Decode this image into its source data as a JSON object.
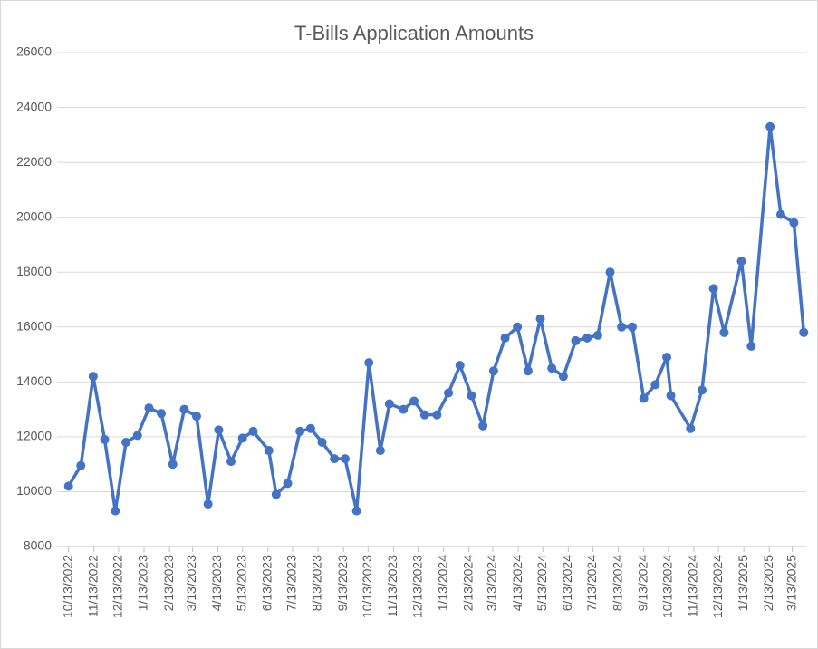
{
  "chart_data": {
    "type": "line",
    "title": "T-Bills Application Amounts",
    "x": [
      "10/13/2022",
      "10/28/2022",
      "11/12/2022",
      "11/26/2022",
      "12/9/2022",
      "12/22/2022",
      "1/5/2023",
      "1/19/2023",
      "2/3/2023",
      "2/17/2023",
      "3/3/2023",
      "3/18/2023",
      "4/1/2023",
      "4/14/2023",
      "4/29/2023",
      "5/13/2023",
      "5/26/2023",
      "6/14/2023",
      "6/23/2023",
      "7/7/2023",
      "7/22/2023",
      "8/4/2023",
      "8/18/2023",
      "9/2/2023",
      "9/15/2023",
      "9/29/2023",
      "10/14/2023",
      "10/28/2023",
      "11/8/2023",
      "11/25/2023",
      "12/8/2023",
      "12/21/2023",
      "1/5/2024",
      "1/19/2024",
      "2/2/2024",
      "2/16/2024",
      "3/1/2024",
      "3/14/2024",
      "3/28/2024",
      "4/12/2024",
      "4/25/2024",
      "5/10/2024",
      "5/24/2024",
      "6/7/2024",
      "6/22/2024",
      "7/6/2024",
      "7/19/2024",
      "8/3/2024",
      "8/17/2024",
      "8/30/2024",
      "9/13/2024",
      "9/27/2024",
      "10/11/2024",
      "10/16/2024",
      "11/9/2024",
      "11/23/2024",
      "12/7/2024",
      "12/20/2024",
      "1/10/2025",
      "1/22/2025",
      "2/14/2025",
      "2/27/2025",
      "3/15/2025",
      "3/27/2025"
    ],
    "series": [
      {
        "color": "#4472c4",
        "values": [
          10200,
          10950,
          14200,
          11900,
          9300,
          11800,
          12050,
          13050,
          12850,
          11000,
          13000,
          12750,
          9550,
          12250,
          11100,
          11950,
          12200,
          11500,
          9900,
          10300,
          12200,
          12300,
          11800,
          11200,
          11200,
          9300,
          14700,
          11500,
          13200,
          13000,
          13300,
          12800,
          12800,
          13600,
          14600,
          13500,
          12400,
          14400,
          15600,
          16000,
          14400,
          16300,
          14500,
          14200,
          15500,
          15600,
          15700,
          18000,
          16000,
          16000,
          13400,
          13900,
          14900,
          13500,
          12300,
          13700,
          17400,
          15800,
          18400,
          15300,
          23300,
          20100,
          19800,
          15800
        ]
      }
    ],
    "xlim": [
      "9/29/2022",
      "3/30/2025"
    ],
    "xticks": [
      "10/13/2022",
      "11/13/2022",
      "12/13/2022",
      "1/13/2023",
      "2/13/2023",
      "3/13/2023",
      "4/13/2023",
      "5/13/2023",
      "6/13/2023",
      "7/13/2023",
      "8/13/2023",
      "9/13/2023",
      "10/13/2023",
      "11/13/2023",
      "12/13/2023",
      "1/13/2024",
      "2/13/2024",
      "3/13/2024",
      "4/13/2024",
      "5/13/2024",
      "6/13/2024",
      "7/13/2024",
      "8/13/2024",
      "9/13/2024",
      "10/13/2024",
      "11/13/2024",
      "12/13/2024",
      "1/13/2025",
      "2/13/2025",
      "3/13/2025"
    ],
    "ylim": [
      8000,
      26000
    ],
    "yticks": [
      8000,
      10000,
      12000,
      14000,
      16000,
      18000,
      20000,
      22000,
      24000,
      26000
    ],
    "grid": true
  }
}
